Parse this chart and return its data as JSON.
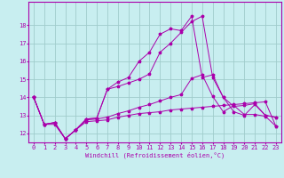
{
  "xlabel": "Windchill (Refroidissement éolien,°C)",
  "background_color": "#c8eef0",
  "grid_color": "#a0cccc",
  "line_color": "#aa00aa",
  "spine_color": "#aa00aa",
  "x_ticks": [
    0,
    1,
    2,
    3,
    4,
    5,
    6,
    7,
    8,
    9,
    10,
    11,
    12,
    13,
    14,
    15,
    16,
    17,
    18,
    19,
    20,
    21,
    22,
    23
  ],
  "y_ticks": [
    12,
    13,
    14,
    15,
    16,
    17,
    18
  ],
  "ylim": [
    11.5,
    19.3
  ],
  "xlim": [
    -0.5,
    23.5
  ],
  "series": [
    [
      14.0,
      12.5,
      12.5,
      11.7,
      12.2,
      12.65,
      12.7,
      12.75,
      12.9,
      13.0,
      13.1,
      13.15,
      13.2,
      13.3,
      13.35,
      13.4,
      13.45,
      13.5,
      13.55,
      13.6,
      13.65,
      13.7,
      13.75,
      12.4
    ],
    [
      14.0,
      12.5,
      12.6,
      11.7,
      12.2,
      12.75,
      12.8,
      12.9,
      13.1,
      13.25,
      13.45,
      13.6,
      13.8,
      14.0,
      14.15,
      15.05,
      15.25,
      14.05,
      13.2,
      13.55,
      13.05,
      13.05,
      12.95,
      12.4
    ],
    [
      14.0,
      12.5,
      12.6,
      11.7,
      12.2,
      12.8,
      12.85,
      14.45,
      14.6,
      14.8,
      15.0,
      15.3,
      16.5,
      17.0,
      17.6,
      18.2,
      18.5,
      15.1,
      14.0,
      13.2,
      13.0,
      13.6,
      13.0,
      12.9
    ],
    [
      14.0,
      12.5,
      12.6,
      11.7,
      12.2,
      12.8,
      12.85,
      14.45,
      14.85,
      15.1,
      16.0,
      16.5,
      17.5,
      17.8,
      17.7,
      18.5,
      15.1,
      15.25,
      14.0,
      13.5,
      13.55,
      13.65,
      13.0,
      12.9
    ]
  ]
}
